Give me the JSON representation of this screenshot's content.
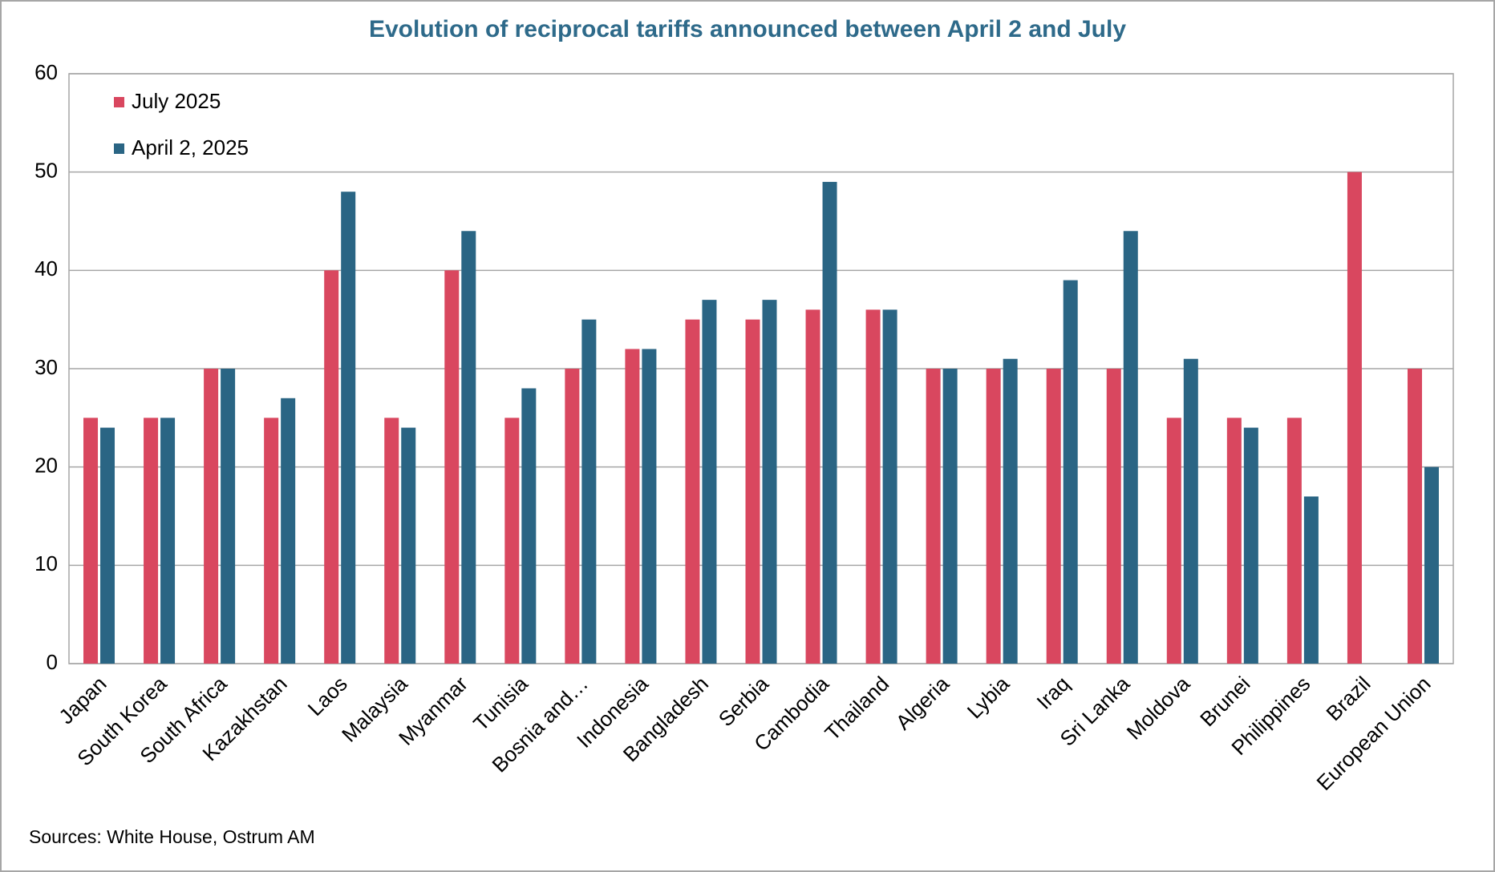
{
  "chart_data": {
    "type": "bar",
    "title": "Evolution of reciprocal tariffs announced between April 2 and July",
    "source": "Sources: White House, Ostrum AM",
    "categories": [
      "Japan",
      "South Korea",
      "South Africa",
      "Kazakhstan",
      "Laos",
      "Malaysia",
      "Myanmar",
      "Tunisia",
      "Bosnia and…",
      "Indonesia",
      "Bangladesh",
      "Serbia",
      "Cambodia",
      "Thailand",
      "Algeria",
      "Lybia",
      "Iraq",
      "Sri Lanka",
      "Moldova",
      "Brunei",
      "Philippines",
      "Brazil",
      "European Union"
    ],
    "series": [
      {
        "name": "July 2025",
        "color": "#d9475f",
        "values": [
          25,
          25,
          30,
          25,
          40,
          25,
          40,
          25,
          30,
          32,
          35,
          35,
          36,
          36,
          30,
          30,
          30,
          30,
          25,
          25,
          25,
          50,
          30
        ]
      },
      {
        "name": "April 2, 2025",
        "color": "#2a6584",
        "values": [
          24,
          25,
          30,
          27,
          48,
          24,
          44,
          28,
          35,
          32,
          37,
          37,
          49,
          36,
          30,
          31,
          39,
          44,
          31,
          24,
          17,
          null,
          20
        ]
      }
    ],
    "ylim": [
      0,
      60
    ],
    "yticks": [
      0,
      10,
      20,
      30,
      40,
      50,
      60
    ],
    "grid": true,
    "legend": "upper left"
  }
}
